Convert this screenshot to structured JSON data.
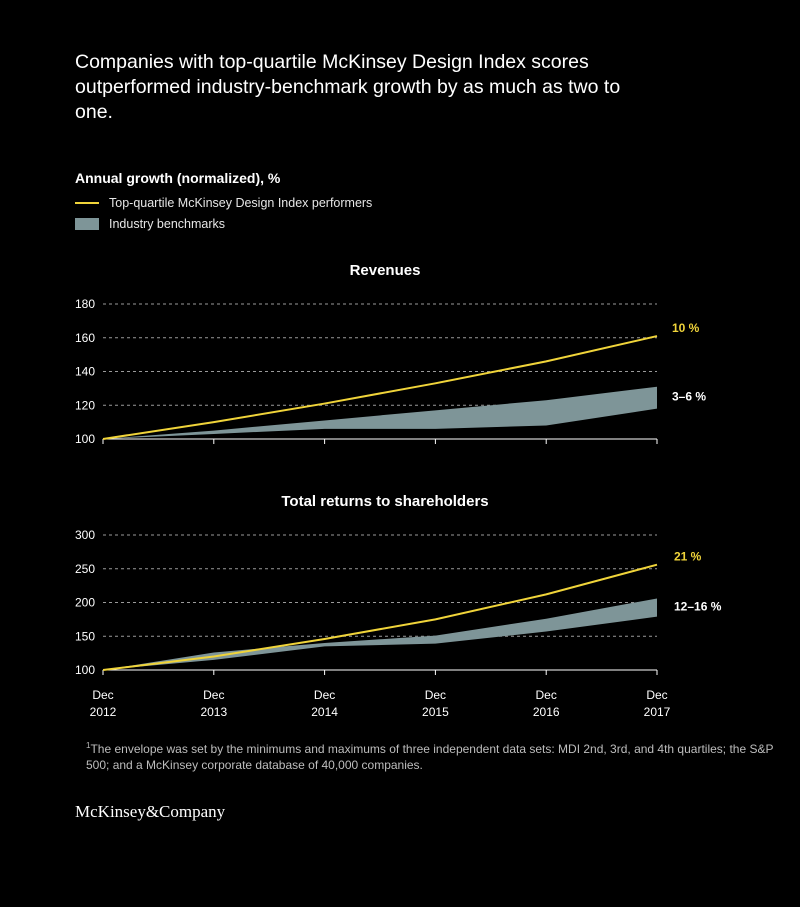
{
  "header": {
    "title": "Companies with top-quartile McKinsey Design Index scores outperformed industry-benchmark growth by as much as two to one."
  },
  "subtitle": "Annual growth (normalized), %",
  "legend": {
    "line_label": "Top-quartile McKinsey Design Index performers",
    "area_label": "Industry benchmarks"
  },
  "colors": {
    "line": "#f0d43a",
    "band": "#7e9598",
    "grid": "#9a9a9a",
    "background": "#000000"
  },
  "x_labels": [
    {
      "month": "Dec",
      "year": "2012"
    },
    {
      "month": "Dec",
      "year": "2013"
    },
    {
      "month": "Dec",
      "year": "2014"
    },
    {
      "month": "Dec",
      "year": "2015"
    },
    {
      "month": "Dec",
      "year": "2016"
    },
    {
      "month": "Dec",
      "year": "2017"
    }
  ],
  "chart_data": [
    {
      "type": "line",
      "title": "Revenues",
      "x": [
        "Dec 2012",
        "Dec 2013",
        "Dec 2014",
        "Dec 2015",
        "Dec 2016",
        "Dec 2017"
      ],
      "ylim": [
        100,
        180
      ],
      "yticks": [
        100,
        120,
        140,
        160,
        180
      ],
      "grid": true,
      "line_series": {
        "name": "Top-quartile McKinsey Design Index performers",
        "values": [
          100,
          110,
          121,
          133,
          146,
          161
        ]
      },
      "band": {
        "name": "Industry benchmarks",
        "lower": [
          100,
          103,
          106,
          106,
          108,
          118
        ],
        "upper": [
          100,
          105,
          111,
          117,
          123,
          131
        ]
      },
      "end_labels": [
        {
          "text": "10 %",
          "color": "#f0d43a"
        },
        {
          "text": "3–6 %",
          "color": "#ffffff"
        }
      ]
    },
    {
      "type": "line",
      "title": "Total returns to shareholders",
      "x": [
        "Dec 2012",
        "Dec 2013",
        "Dec 2014",
        "Dec 2015",
        "Dec 2016",
        "Dec 2017"
      ],
      "ylim": [
        100,
        300
      ],
      "yticks": [
        100,
        150,
        200,
        250,
        300
      ],
      "grid": true,
      "line_series": {
        "name": "Top-quartile McKinsey Design Index performers",
        "values": [
          100,
          120,
          146,
          175,
          212,
          256
        ]
      },
      "band": {
        "name": "Industry benchmarks",
        "lower": [
          100,
          115,
          135,
          139,
          157,
          179
        ],
        "upper": [
          100,
          126,
          140,
          151,
          176,
          206
        ]
      },
      "end_labels": [
        {
          "text": "21 %",
          "color": "#f0d43a"
        },
        {
          "text": "12–16 %",
          "color": "#ffffff"
        }
      ]
    }
  ],
  "footnote": {
    "marker": "1",
    "text": "The envelope was set by the minimums and maximums of three independent data sets: MDI 2nd, 3rd, and 4th quartiles; the S&P 500; and a McKinsey corporate database of 40,000 companies."
  },
  "brand": "McKinsey&Company"
}
